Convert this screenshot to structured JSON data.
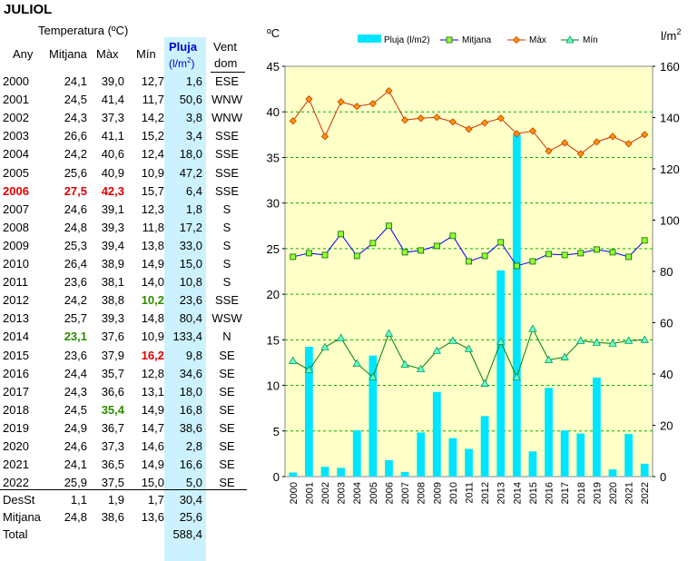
{
  "title": "JULIOL",
  "table": {
    "headers": {
      "temperatura": "Temperatura (ºC)",
      "any": "Any",
      "mitjana": "Mitjana",
      "max": "Màx",
      "min": "Mín",
      "pluja": "Pluja",
      "pluja_unit_l": "(l/m",
      "pluja_unit_sup": "2",
      "pluja_unit_r": ")",
      "vent": "Vent",
      "vent_dom": "dom"
    },
    "rows": [
      {
        "any": "2000",
        "mitjana": "24,1",
        "max": "39,0",
        "min": "12,7",
        "pluja": "1,6",
        "vent": "ESE",
        "hl": ""
      },
      {
        "any": "2001",
        "mitjana": "24,5",
        "max": "41,4",
        "min": "11,7",
        "pluja": "50,6",
        "vent": "WNW",
        "hl": ""
      },
      {
        "any": "2002",
        "mitjana": "24,3",
        "max": "37,3",
        "min": "14,2",
        "pluja": "3,8",
        "vent": "WNW",
        "hl": ""
      },
      {
        "any": "2003",
        "mitjana": "26,6",
        "max": "41,1",
        "min": "15,2",
        "pluja": "3,4",
        "vent": "SSE",
        "hl": ""
      },
      {
        "any": "2004",
        "mitjana": "24,2",
        "max": "40,6",
        "min": "12,4",
        "pluja": "18,0",
        "vent": "SSE",
        "hl": ""
      },
      {
        "any": "2005",
        "mitjana": "25,6",
        "max": "40,9",
        "min": "10,9",
        "pluja": "47,2",
        "vent": "SSE",
        "hl": ""
      },
      {
        "any": "2006",
        "mitjana": "27,5",
        "max": "42,3",
        "min": "15,7",
        "pluja": "6,4",
        "vent": "SSE",
        "hl": "red-any red-mit red-max"
      },
      {
        "any": "2007",
        "mitjana": "24,6",
        "max": "39,1",
        "min": "12,3",
        "pluja": "1,8",
        "vent": "S",
        "hl": ""
      },
      {
        "any": "2008",
        "mitjana": "24,8",
        "max": "39,3",
        "min": "11,8",
        "pluja": "17,2",
        "vent": "S",
        "hl": ""
      },
      {
        "any": "2009",
        "mitjana": "25,3",
        "max": "39,4",
        "min": "13,8",
        "pluja": "33,0",
        "vent": "S",
        "hl": ""
      },
      {
        "any": "2010",
        "mitjana": "26,4",
        "max": "38,9",
        "min": "14,9",
        "pluja": "15,0",
        "vent": "S",
        "hl": ""
      },
      {
        "any": "2011",
        "mitjana": "23,6",
        "max": "38,1",
        "min": "14,0",
        "pluja": "10,8",
        "vent": "S",
        "hl": ""
      },
      {
        "any": "2012",
        "mitjana": "24,2",
        "max": "38,8",
        "min": "10,2",
        "pluja": "23,6",
        "vent": "SSE",
        "hl": "green-min"
      },
      {
        "any": "2013",
        "mitjana": "25,7",
        "max": "39,3",
        "min": "14,8",
        "pluja": "80,4",
        "vent": "WSW",
        "hl": ""
      },
      {
        "any": "2014",
        "mitjana": "23,1",
        "max": "37,6",
        "min": "10,9",
        "pluja": "133,4",
        "vent": "N",
        "hl": "green-mit"
      },
      {
        "any": "2015",
        "mitjana": "23,6",
        "max": "37,9",
        "min": "16,2",
        "pluja": "9,8",
        "vent": "SE",
        "hl": "red-min"
      },
      {
        "any": "2016",
        "mitjana": "24,4",
        "max": "35,7",
        "min": "12,8",
        "pluja": "34,6",
        "vent": "SE",
        "hl": ""
      },
      {
        "any": "2017",
        "mitjana": "24,3",
        "max": "36,6",
        "min": "13,1",
        "pluja": "18,0",
        "vent": "SE",
        "hl": ""
      },
      {
        "any": "2018",
        "mitjana": "24,5",
        "max": "35,4",
        "min": "14,9",
        "pluja": "16,8",
        "vent": "SE",
        "hl": "green-max"
      },
      {
        "any": "2019",
        "mitjana": "24,9",
        "max": "36,7",
        "min": "14,7",
        "pluja": "38,6",
        "vent": "SE",
        "hl": ""
      },
      {
        "any": "2020",
        "mitjana": "24,6",
        "max": "37,3",
        "min": "14,6",
        "pluja": "2,8",
        "vent": "SE",
        "hl": ""
      },
      {
        "any": "2021",
        "mitjana": "24,1",
        "max": "36,5",
        "min": "14,9",
        "pluja": "16,6",
        "vent": "SE",
        "hl": ""
      },
      {
        "any": "2022",
        "mitjana": "25,9",
        "max": "37,5",
        "min": "15,0",
        "pluja": "5,0",
        "vent": "SE",
        "hl": ""
      }
    ],
    "summary": [
      {
        "label": "DesSt",
        "mitjana": "1,1",
        "max": "1,9",
        "min": "1,7",
        "pluja": "30,4"
      },
      {
        "label": "Mitjana",
        "mitjana": "24,8",
        "max": "38,6",
        "min": "13,6",
        "pluja": "25,6"
      },
      {
        "label": "Total",
        "mitjana": "",
        "max": "",
        "min": "",
        "pluja": "588,4"
      }
    ]
  },
  "colors": {
    "plot_bg": "#ffffc8",
    "grid": "#00b000",
    "bar": "#00e5ff",
    "mitjana_line": "#0000ff",
    "mitjana_marker": "#99ff33",
    "max_line": "#cc3300",
    "max_marker": "#ff9900",
    "min_line": "#008000",
    "min_marker": "#66ffcc"
  },
  "chart_data": {
    "type": "bar",
    "y_left_label": "ºC",
    "y_right_label_base": "l/m",
    "y_right_label_sup": "2",
    "y_left_lim": [
      0,
      45
    ],
    "y_right_lim": [
      0,
      160
    ],
    "y_left_ticks": [
      "0",
      "5",
      "10",
      "15",
      "20",
      "25",
      "30",
      "35",
      "40",
      "45"
    ],
    "y_right_ticks": [
      "0",
      "20",
      "40",
      "60",
      "80",
      "100",
      "120",
      "140",
      "160"
    ],
    "grid": true,
    "legend_position": "top",
    "categories": [
      "2000",
      "2001",
      "2002",
      "2003",
      "2004",
      "2005",
      "2006",
      "2007",
      "2008",
      "2009",
      "2010",
      "2011",
      "2012",
      "2013",
      "2014",
      "2015",
      "2016",
      "2017",
      "2018",
      "2019",
      "2020",
      "2021",
      "2022"
    ],
    "series": [
      {
        "name": "Pluja (l/m2)",
        "kind": "bar",
        "axis": "right",
        "values": [
          1.6,
          50.6,
          3.8,
          3.4,
          18.0,
          47.2,
          6.4,
          1.8,
          17.2,
          33.0,
          15.0,
          10.8,
          23.6,
          80.4,
          133.4,
          9.8,
          34.6,
          18.0,
          16.8,
          38.6,
          2.8,
          16.6,
          5.0
        ]
      },
      {
        "name": "Mitjana",
        "kind": "line",
        "axis": "left",
        "marker": "square",
        "values": [
          24.1,
          24.5,
          24.3,
          26.6,
          24.2,
          25.6,
          27.5,
          24.6,
          24.8,
          25.3,
          26.4,
          23.6,
          24.2,
          25.7,
          23.1,
          23.6,
          24.4,
          24.3,
          24.5,
          24.9,
          24.6,
          24.1,
          25.9
        ]
      },
      {
        "name": "Màx",
        "kind": "line",
        "axis": "left",
        "marker": "diamond",
        "values": [
          39.0,
          41.4,
          37.3,
          41.1,
          40.6,
          40.9,
          42.3,
          39.1,
          39.3,
          39.4,
          38.9,
          38.1,
          38.8,
          39.3,
          37.6,
          37.9,
          35.7,
          36.6,
          35.4,
          36.7,
          37.3,
          36.5,
          37.5
        ]
      },
      {
        "name": "Mín",
        "kind": "line",
        "axis": "left",
        "marker": "triangle",
        "values": [
          12.7,
          11.7,
          14.2,
          15.2,
          12.4,
          10.9,
          15.7,
          12.3,
          11.8,
          13.8,
          14.9,
          14.0,
          10.2,
          14.8,
          10.9,
          16.2,
          12.8,
          13.1,
          14.9,
          14.7,
          14.6,
          14.9,
          15.0
        ]
      }
    ]
  }
}
